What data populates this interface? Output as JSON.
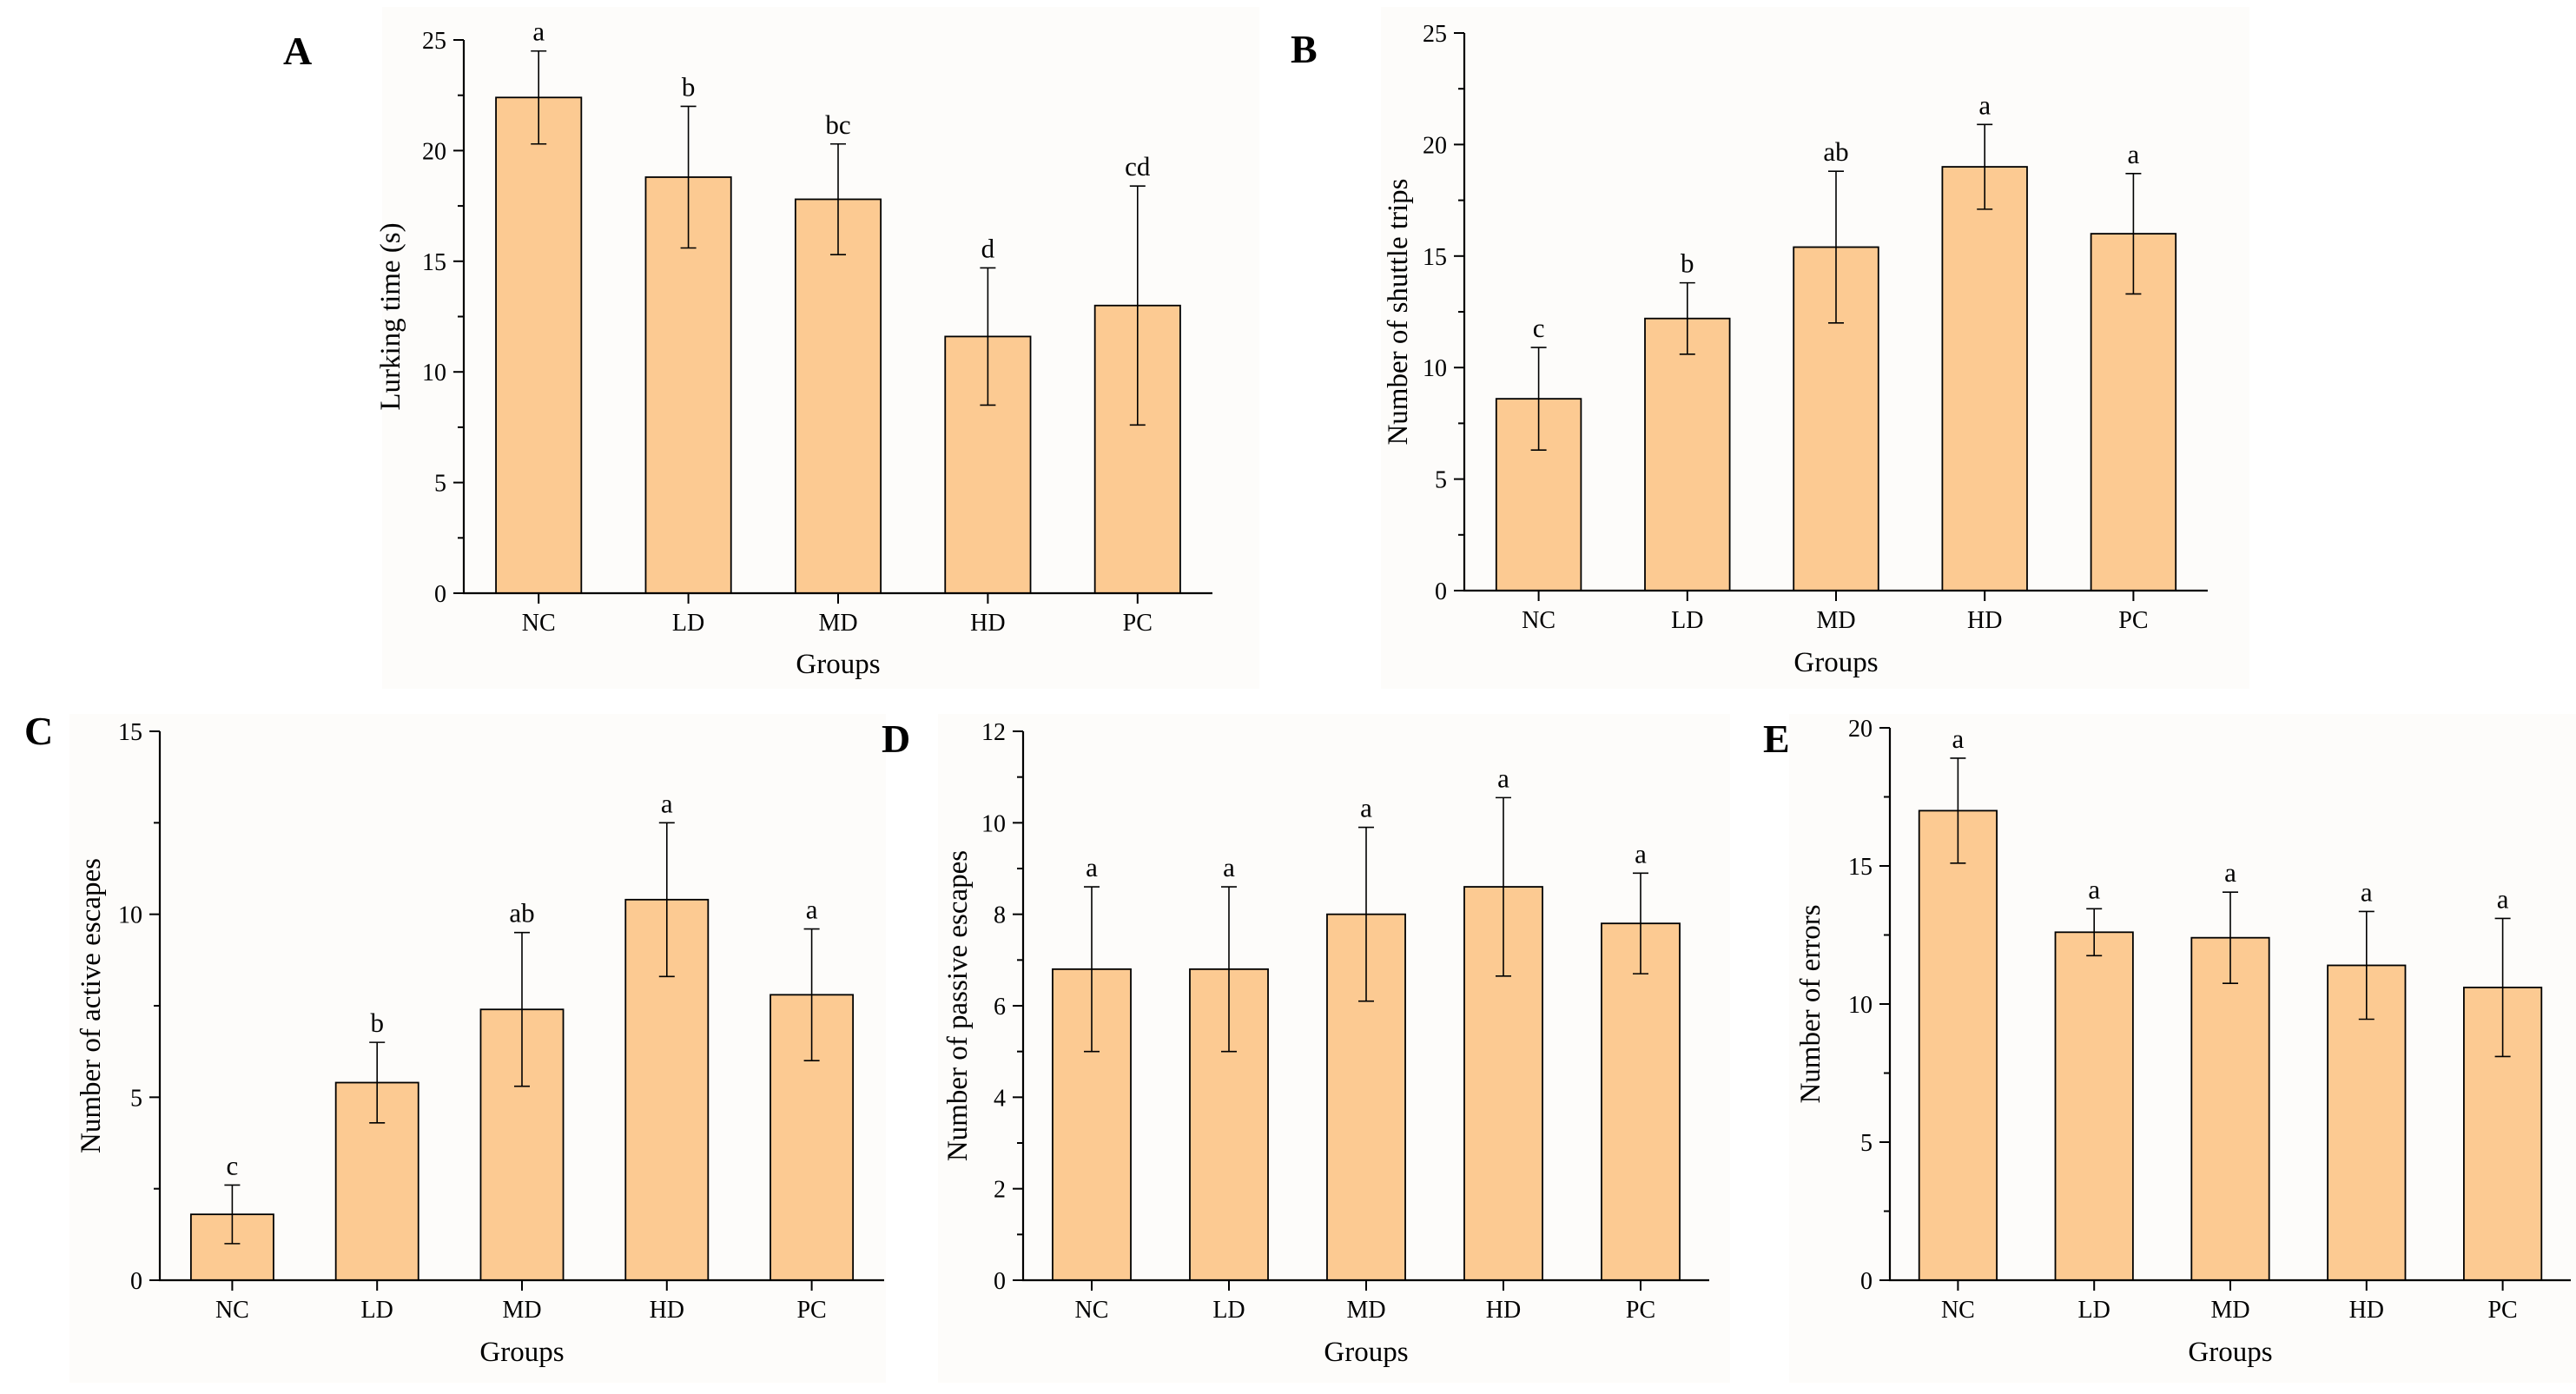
{
  "style": {
    "bar_fill": "#fcca92",
    "bar_stroke": "#000000",
    "background": "#ffffff"
  },
  "chart_data": [
    {
      "panel": "A",
      "type": "bar",
      "categories": [
        "NC",
        "LD",
        "MD",
        "HD",
        "PC"
      ],
      "series": [
        {
          "values": [
            22.4,
            18.8,
            17.8,
            11.6,
            13.0
          ],
          "error": [
            2.1,
            3.2,
            2.5,
            3.1,
            5.4
          ]
        }
      ],
      "significance": [
        "a",
        "b",
        "bc",
        "d",
        "cd"
      ],
      "xlabel": "Groups",
      "ylabel": "Lurking time (s)",
      "ylim": [
        0,
        25
      ],
      "yticks": [
        0,
        5,
        10,
        15,
        20,
        25
      ],
      "grid": false
    },
    {
      "panel": "B",
      "type": "bar",
      "categories": [
        "NC",
        "LD",
        "MD",
        "HD",
        "PC"
      ],
      "series": [
        {
          "values": [
            8.6,
            12.2,
            15.4,
            19.0,
            16.0
          ],
          "error": [
            2.3,
            1.6,
            3.4,
            1.9,
            2.7
          ]
        }
      ],
      "significance": [
        "c",
        "b",
        "ab",
        "a",
        "a"
      ],
      "xlabel": "Groups",
      "ylabel": "Number of shuttle trips",
      "ylim": [
        0,
        25
      ],
      "yticks": [
        0,
        5,
        10,
        15,
        20,
        25
      ],
      "grid": false
    },
    {
      "panel": "C",
      "type": "bar",
      "categories": [
        "NC",
        "LD",
        "MD",
        "HD",
        "PC"
      ],
      "series": [
        {
          "values": [
            1.8,
            5.4,
            7.4,
            10.4,
            7.8
          ],
          "error": [
            0.8,
            1.1,
            2.1,
            2.1,
            1.8
          ]
        }
      ],
      "significance": [
        "c",
        "b",
        "ab",
        "a",
        "a"
      ],
      "xlabel": "Groups",
      "ylabel": "Number of active escapes",
      "ylim": [
        0,
        15
      ],
      "yticks": [
        0,
        5,
        10,
        15
      ],
      "grid": false
    },
    {
      "panel": "D",
      "type": "bar",
      "categories": [
        "NC",
        "LD",
        "MD",
        "HD",
        "PC"
      ],
      "series": [
        {
          "values": [
            6.8,
            6.8,
            8.0,
            8.6,
            7.8
          ],
          "error": [
            1.8,
            1.8,
            1.9,
            1.95,
            1.1
          ]
        }
      ],
      "significance": [
        "a",
        "a",
        "a",
        "a",
        "a"
      ],
      "xlabel": "Groups",
      "ylabel": "Number of passive escapes",
      "ylim": [
        0,
        12
      ],
      "yticks": [
        0,
        2,
        4,
        6,
        8,
        10,
        12
      ],
      "grid": false
    },
    {
      "panel": "E",
      "type": "bar",
      "categories": [
        "NC",
        "LD",
        "MD",
        "HD",
        "PC"
      ],
      "series": [
        {
          "values": [
            17.0,
            12.6,
            12.4,
            11.4,
            10.6
          ],
          "error": [
            1.9,
            0.85,
            1.65,
            1.95,
            2.5
          ]
        }
      ],
      "significance": [
        "a",
        "a",
        "a",
        "a",
        "a"
      ],
      "xlabel": "Groups",
      "ylabel": "Number of errors",
      "ylim": [
        0,
        20
      ],
      "yticks": [
        0,
        5,
        10,
        15,
        20
      ],
      "grid": false
    }
  ]
}
